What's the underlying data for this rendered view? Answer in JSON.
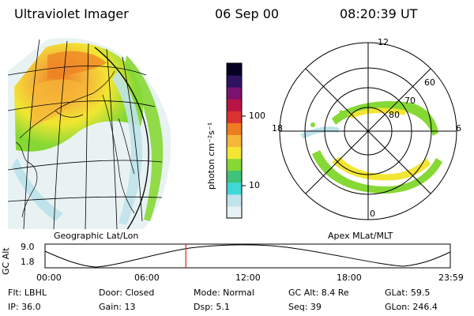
{
  "header": {
    "instrument": "Ultraviolet Imager",
    "date": "06 Sep 00",
    "time": "08:20:39 UT"
  },
  "colorbar": {
    "unit_label": "photon cm⁻²s⁻¹",
    "ticks": [
      "100",
      "10"
    ],
    "colors": [
      "#e8f2f4",
      "#bfe3ea",
      "#40d7d7",
      "#3fc27a",
      "#86d834",
      "#f2e632",
      "#f5b63a",
      "#ee7d22",
      "#d9322f",
      "#b81446",
      "#7b1170",
      "#301360",
      "#060022"
    ]
  },
  "panels": {
    "left_caption": "Geographic Lat/Lon",
    "right_caption": "Apex MLat/MLT",
    "polar": {
      "lat_labels": [
        "80",
        "70",
        "60"
      ],
      "mlt_labels": [
        "12",
        "18",
        "6",
        "0"
      ]
    }
  },
  "altitude_plot": {
    "axis_label": "GC Alt",
    "y_ticks": [
      "9.0",
      "1.8"
    ],
    "x_ticks": [
      "00:00",
      "06:00",
      "12:00",
      "18:00",
      "23:59"
    ],
    "current_time_hours": 8.34
  },
  "info": {
    "row1": {
      "flt": "Flt: LBHL",
      "door": "Door: Closed",
      "mode": "Mode: Normal",
      "gc_alt": "GC Alt: 8.4 Re",
      "glat": "GLat:  59.5"
    },
    "row2": {
      "ip": "IP: 36.0",
      "gain": "Gain: 13",
      "dsp": "Dsp:     5.1",
      "seq": "Seq: 39",
      "glon": "GLon: 246.4"
    }
  }
}
